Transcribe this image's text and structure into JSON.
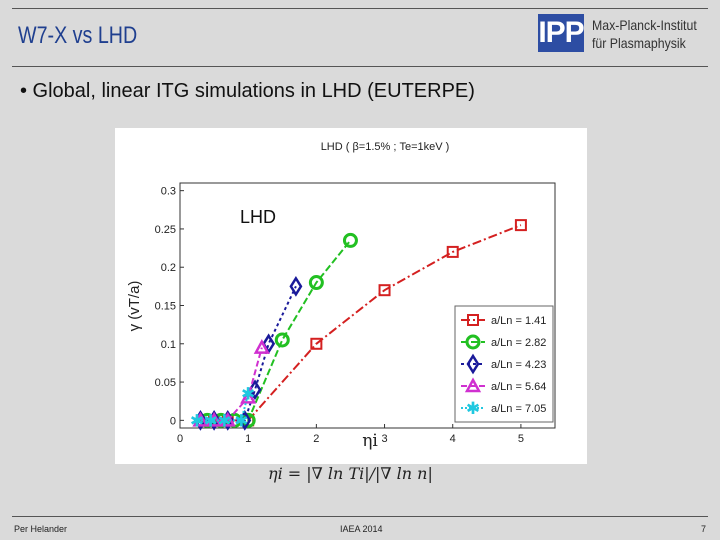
{
  "header": {
    "title": "W7-X vs LHD",
    "institute_line1": "Max-Planck-Institut",
    "institute_line2": "für Plasmaphysik",
    "logo_text": "IPP"
  },
  "bullet": "• Global, linear ITG simulations in LHD (EUTERPE)",
  "formula": "ηi = |∇ ln Ti|/|∇ ln n|",
  "footer": {
    "left": "Per Helander",
    "center": "IAEA 2014",
    "page": "7"
  },
  "chart_data": {
    "type": "line",
    "title": "LHD ( β=1.5% ; Te=1keV )",
    "annotation": "LHD",
    "xlabel": "ηi",
    "ylabel": "γ (vT/a)",
    "xlim": [
      0,
      5.5
    ],
    "ylim": [
      -0.01,
      0.31
    ],
    "xticks": [
      0,
      1,
      2,
      3,
      4,
      5
    ],
    "yticks": [
      0,
      0.05,
      0.1,
      0.15,
      0.2,
      0.25,
      0.3
    ],
    "series": [
      {
        "name": "a/Ln = 1.41",
        "color": "#d42020",
        "marker": "square",
        "dash": "9,3,2,3",
        "x": [
          0.5,
          0.7,
          1.0,
          2.0,
          3.0,
          4.0,
          5.0
        ],
        "y": [
          0,
          0,
          0,
          0.1,
          0.17,
          0.22,
          0.255
        ]
      },
      {
        "name": "a/Ln = 2.82",
        "color": "#22c022",
        "marker": "circle",
        "dash": "7,3",
        "x": [
          0.4,
          0.6,
          0.8,
          1.0,
          1.5,
          2.0,
          2.5
        ],
        "y": [
          0,
          0,
          0,
          0,
          0.105,
          0.18,
          0.235
        ]
      },
      {
        "name": "a/Ln = 4.23",
        "color": "#1a1a9a",
        "marker": "diamond",
        "dash": "3,3",
        "x": [
          0.3,
          0.5,
          0.7,
          0.95,
          1.1,
          1.3,
          1.7
        ],
        "y": [
          0,
          0,
          0,
          0,
          0.04,
          0.1,
          0.175
        ]
      },
      {
        "name": "a/Ln = 5.64",
        "color": "#d030d0",
        "marker": "triangle",
        "dash": "6,3",
        "x": [
          0.3,
          0.5,
          0.7,
          1.0,
          1.2
        ],
        "y": [
          0,
          0,
          0,
          0.03,
          0.095
        ]
      },
      {
        "name": "a/Ln = 7.05",
        "color": "#20c8e0",
        "marker": "star",
        "dash": "2,2",
        "x": [
          0.25,
          0.45,
          0.65,
          0.9,
          1.0
        ],
        "y": [
          0,
          0,
          0,
          0,
          0.035
        ]
      }
    ],
    "legend": "bottom-right",
    "grid": false
  }
}
